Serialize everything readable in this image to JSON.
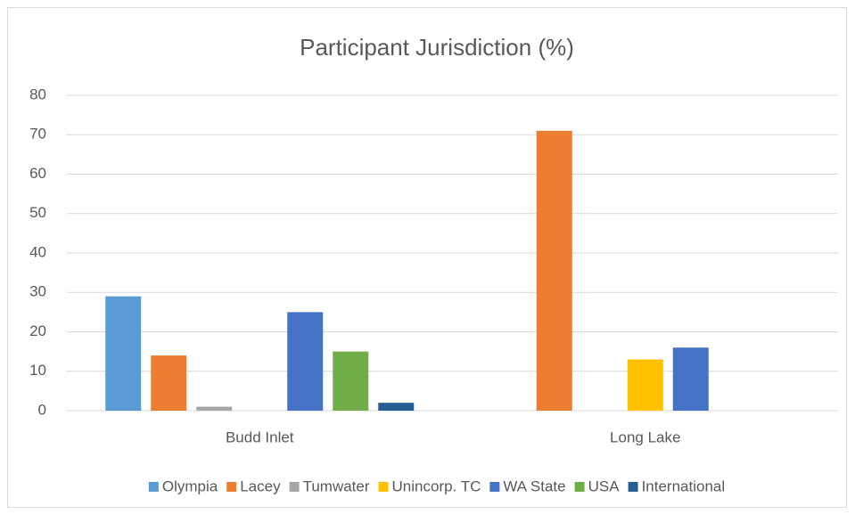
{
  "chart_data": {
    "type": "bar",
    "title": "Participant Jurisdiction (%)",
    "categories": [
      "Budd Inlet",
      "Long Lake"
    ],
    "series": [
      {
        "name": "Olympia",
        "color": "#5b9bd5",
        "values": [
          29,
          0
        ]
      },
      {
        "name": "Lacey",
        "color": "#ed7d31",
        "values": [
          14,
          71
        ]
      },
      {
        "name": "Tumwater",
        "color": "#a5a5a5",
        "values": [
          1,
          0
        ]
      },
      {
        "name": "Unincorp. TC",
        "color": "#ffc000",
        "values": [
          0,
          13
        ]
      },
      {
        "name": "WA State",
        "color": "#4472c4",
        "values": [
          25,
          16
        ]
      },
      {
        "name": "USA",
        "color": "#70ad47",
        "values": [
          15,
          0
        ]
      },
      {
        "name": "International",
        "color": "#255e91",
        "values": [
          2,
          0
        ]
      }
    ],
    "ylim": [
      0,
      80
    ],
    "yticks": [
      0,
      10,
      20,
      30,
      40,
      50,
      60,
      70,
      80
    ],
    "grid": true,
    "legend": "bottom"
  }
}
